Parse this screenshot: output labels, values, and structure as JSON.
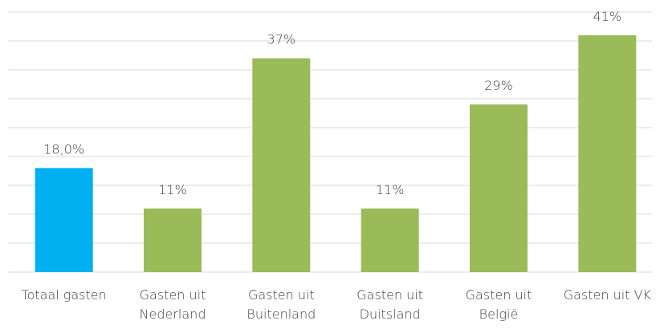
{
  "chart_data": {
    "type": "bar",
    "categories": [
      "Totaal gasten",
      "Gasten uit Nederland",
      "Gasten uit Buitenland",
      "Gasten uit Duitsland",
      "Gasten uit België",
      "Gasten uit VK"
    ],
    "values": [
      18,
      11,
      37,
      11,
      29,
      41
    ],
    "value_labels": [
      "18,0%",
      "11%",
      "37%",
      "11%",
      "29%",
      "41%"
    ],
    "colors": [
      "#00b0f0",
      "#9bbb59",
      "#9bbb59",
      "#9bbb59",
      "#9bbb59",
      "#9bbb59"
    ],
    "ylim": [
      0,
      45
    ],
    "yticks": [
      0,
      5,
      10,
      15,
      20,
      25,
      30,
      35,
      40,
      45
    ],
    "grid": true
  }
}
